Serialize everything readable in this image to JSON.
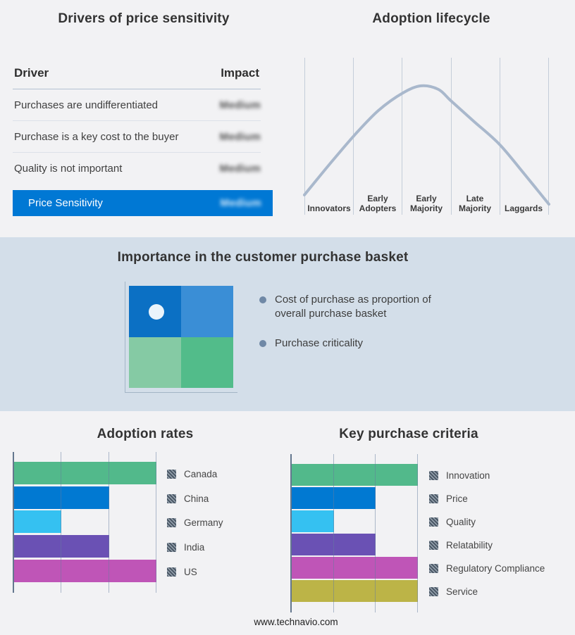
{
  "page": {
    "footer_link": "www.technavio.com"
  },
  "colors": {
    "page_bg": "#f2f2f4",
    "band_bg": "#d3dee9",
    "accent_blue": "#0078d4",
    "axis": "#64778e",
    "bullet": "#6f88a6"
  },
  "drivers_table": {
    "title": "Drivers of price sensitivity",
    "col_driver": "Driver",
    "col_impact": "Impact",
    "rows": [
      {
        "driver": "Purchases are undifferentiated",
        "impact": "Medium",
        "impact_redacted": true
      },
      {
        "driver": "Purchase is a key cost to the buyer",
        "impact": "Medium",
        "impact_redacted": true
      },
      {
        "driver": "Quality is not important",
        "impact": "Medium",
        "impact_redacted": true
      }
    ],
    "summary_row": {
      "label": "Price Sensitivity",
      "impact": "Medium",
      "impact_redacted": true
    }
  },
  "adoption_lifecycle": {
    "title": "Adoption lifecycle",
    "stages": [
      "Innovators",
      "Early Adopters",
      "Early Majority",
      "Late Majority",
      "Laggards"
    ]
  },
  "purchase_basket": {
    "title": "Importance in the customer purchase basket",
    "bullets": [
      "Cost of purchase as proportion of overall purchase basket",
      "Purchase criticality"
    ]
  },
  "chart_data": [
    {
      "id": "adoption_lifecycle_curve",
      "type": "line",
      "title": "Adoption lifecycle",
      "x_stages": [
        "Innovators",
        "Early Adopters",
        "Early Majority",
        "Late Majority",
        "Laggards"
      ],
      "line_color": "#a9b8cc",
      "grid": "vertical",
      "points_norm": [
        [
          0,
          0.874
        ],
        [
          0.101,
          0.682
        ],
        [
          0.205,
          0.493
        ],
        [
          0.303,
          0.336
        ],
        [
          0.403,
          0.224
        ],
        [
          0.478,
          0.179
        ],
        [
          0.548,
          0.202
        ],
        [
          0.599,
          0.274
        ],
        [
          0.692,
          0.404
        ],
        [
          0.798,
          0.552
        ],
        [
          0.899,
          0.74
        ],
        [
          1,
          0.933
        ]
      ]
    },
    {
      "id": "adoption_rates",
      "type": "bar",
      "orientation": "horizontal",
      "title": "Adoption rates",
      "categories": [
        "Canada",
        "China",
        "Germany",
        "India",
        "US"
      ],
      "values": [
        3,
        2,
        1,
        2,
        3
      ],
      "xlim": [
        0,
        3
      ],
      "colors": [
        "#52b98b",
        "#0179d2",
        "#35c1f1",
        "#6a51b4",
        "#bf55b7"
      ],
      "value_labels_redacted": true,
      "legend_position": "right"
    },
    {
      "id": "key_purchase_criteria",
      "type": "bar",
      "orientation": "horizontal",
      "title": "Key purchase criteria",
      "categories": [
        "Innovation",
        "Price",
        "Quality",
        "Relatability",
        "Regulatory Compliance",
        "Service"
      ],
      "values": [
        3,
        2,
        1,
        2,
        3,
        3
      ],
      "xlim": [
        0,
        3
      ],
      "colors": [
        "#52b98b",
        "#0179d2",
        "#35c1f1",
        "#6a51b4",
        "#bf55b7",
        "#bcb447"
      ],
      "value_labels_redacted": true,
      "legend_position": "right"
    },
    {
      "id": "purchase_basket_quadrant",
      "type": "heatmap",
      "title": "Importance in the customer purchase basket",
      "cells": [
        [
          "#0b70c4",
          "#3a8ed6"
        ],
        [
          "#85caa4",
          "#52bc8a"
        ]
      ],
      "marker": {
        "row": 0,
        "col": 0,
        "color": "#eaf4fb"
      }
    }
  ]
}
